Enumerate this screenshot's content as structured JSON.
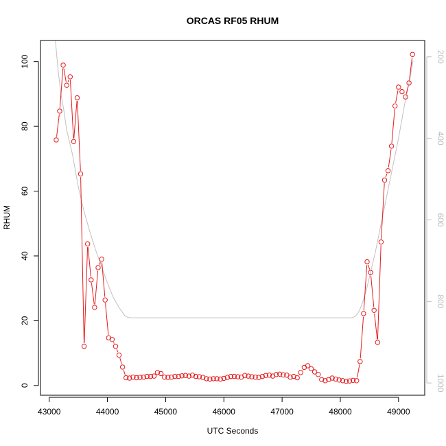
{
  "chart_data": {
    "type": "line",
    "title": "ORCAS RF05 RHUM",
    "xlabel": "UTC Seconds",
    "ylabel": "RHUM",
    "xlim": [
      42850,
      49450
    ],
    "ylim": [
      -3.0,
      106.5
    ],
    "y2lim": [
      1030,
      160
    ],
    "x_ticks": [
      43000,
      44000,
      45000,
      46000,
      47000,
      48000,
      49000
    ],
    "y_ticks": [
      0,
      20,
      40,
      60,
      80,
      100
    ],
    "y2_ticks": [
      200,
      400,
      600,
      800,
      1000
    ],
    "colors": {
      "series": "#e41a1c",
      "secondary": "#c0c0c0",
      "axis": "#000000",
      "secondary_ticks": "#bfbfbf"
    },
    "series": [
      {
        "role": "primary",
        "axis": "left",
        "marker": "open-circle",
        "x": [
          43120,
          43180,
          43240,
          43300,
          43360,
          43420,
          43480,
          43540,
          43600,
          43660,
          43720,
          43780,
          43840,
          43900,
          43960,
          44020,
          44080,
          44140,
          44200,
          44260,
          44320,
          44380,
          44440,
          44500,
          44560,
          44620,
          44680,
          44740,
          44800,
          44860,
          44920,
          44980,
          45040,
          45100,
          45160,
          45220,
          45280,
          45340,
          45400,
          45460,
          45520,
          45580,
          45640,
          45700,
          45760,
          45820,
          45880,
          45940,
          46000,
          46060,
          46120,
          46180,
          46240,
          46300,
          46360,
          46420,
          46480,
          46540,
          46600,
          46660,
          46720,
          46780,
          46840,
          46900,
          46960,
          47020,
          47080,
          47140,
          47200,
          47260,
          47320,
          47380,
          47440,
          47500,
          47560,
          47620,
          47680,
          47740,
          47800,
          47860,
          47920,
          47980,
          48040,
          48100,
          48160,
          48220,
          48280,
          48340,
          48400,
          48460,
          48520,
          48580,
          48640,
          48700,
          48760,
          48820,
          48880,
          48940,
          49000,
          49060,
          49120,
          49180,
          49240
        ],
        "y": [
          75.8,
          84.7,
          98.9,
          92.7,
          95.3,
          75.3,
          88.8,
          65.3,
          12.1,
          43.7,
          32.6,
          24.1,
          36.4,
          39.0,
          26.4,
          14.7,
          14.2,
          12.1,
          9.4,
          5.7,
          2.4,
          2.3,
          2.6,
          2.4,
          2.5,
          2.6,
          2.8,
          2.8,
          2.9,
          4.0,
          3.7,
          2.6,
          2.5,
          2.6,
          2.8,
          2.8,
          3.0,
          3.1,
          2.9,
          3.2,
          2.8,
          2.7,
          2.5,
          2.1,
          2.0,
          2.1,
          2.1,
          2.0,
          2.2,
          2.5,
          2.8,
          2.8,
          2.7,
          2.6,
          3.1,
          2.9,
          2.7,
          2.6,
          2.5,
          2.8,
          3.1,
          3.2,
          2.9,
          3.4,
          3.5,
          3.3,
          3.2,
          2.6,
          2.8,
          2.4,
          4.0,
          5.6,
          6.1,
          5.2,
          4.2,
          3.4,
          1.8,
          1.5,
          1.8,
          2.3,
          2.0,
          1.7,
          1.5,
          1.3,
          1.4,
          1.6,
          1.5,
          7.4,
          22.2,
          38.2,
          34.9,
          23.2,
          13.3,
          44.3,
          63.4,
          66.3,
          73.9,
          86.3,
          92.1,
          90.7,
          89.1,
          93.4,
          102.2
        ]
      },
      {
        "role": "secondary",
        "axis": "right",
        "marker": "none",
        "x": [
          43050,
          43100,
          43150,
          43200,
          43250,
          43300,
          43400,
          43500,
          43600,
          43700,
          43800,
          43900,
          44000,
          44100,
          44200,
          44300,
          44350,
          44400,
          45000,
          46000,
          47000,
          48000,
          48200,
          48250,
          48300,
          48350,
          48400,
          48450,
          48500,
          48600,
          48700,
          48800,
          48900,
          49000,
          49100,
          49200,
          49250
        ],
        "y": [
          60,
          150,
          230,
          290,
          330,
          380,
          440,
          520,
          580,
          630,
          675,
          715,
          755,
          790,
          815,
          835,
          839,
          840,
          840,
          840,
          840,
          840,
          840,
          837,
          830,
          815,
          795,
          770,
          740,
          680,
          610,
          540,
          470,
          400,
          320,
          250,
          210
        ]
      }
    ]
  }
}
